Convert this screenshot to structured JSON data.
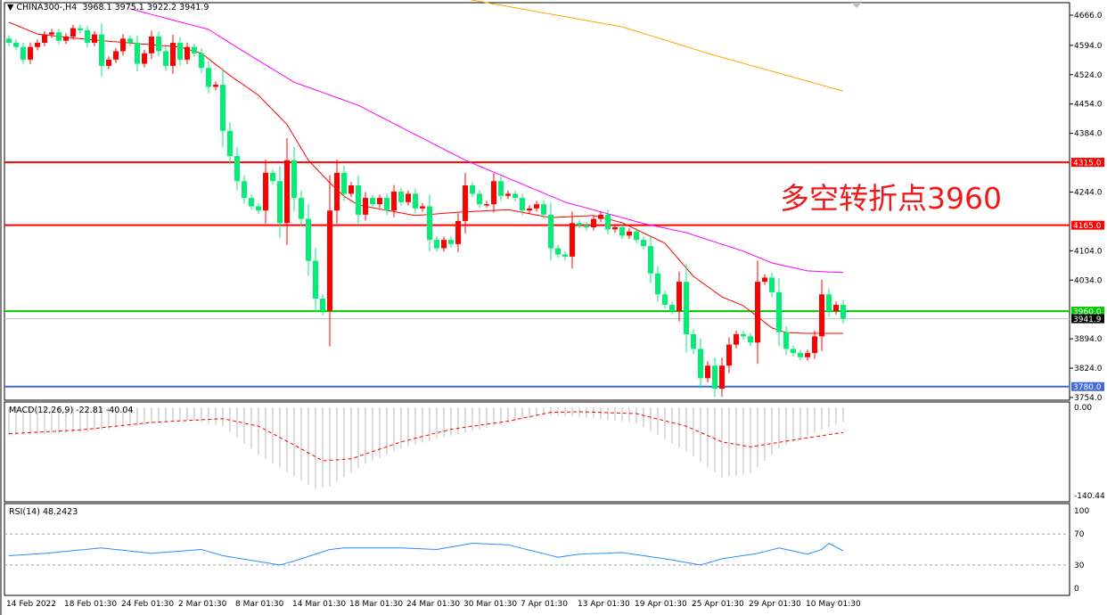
{
  "header": {
    "symbol": "CHINA300-,H4",
    "ohlc": "3968.1 3975.1 3922.2 3941.9"
  },
  "annotation": "多空转折点3960",
  "chart_data": [
    {
      "type": "candlestick",
      "title": "CHINA300-,H4",
      "y_ticks": [
        "4666.0",
        "4594.0",
        "4524.0",
        "4454.0",
        "4384.0",
        "4244.0",
        "4104.0",
        "4034.0",
        "3894.0",
        "3824.0",
        "3754.0"
      ],
      "ylim": [
        3754,
        4666
      ],
      "up_color": "#ff0000",
      "down_color": "#00ee76",
      "x_ticks": [
        "14 Feb 2022",
        "18 Feb 01:30",
        "24 Feb 01:30",
        "2 Mar 01:30",
        "8 Mar 01:30",
        "14 Mar 01:30",
        "18 Mar 01:30",
        "24 Mar 01:30",
        "30 Mar 01:30",
        "7 Apr 01:30",
        "13 Apr 01:30",
        "19 Apr 01:30",
        "25 Apr 01:30",
        "29 Apr 01:30",
        "10 May 01:30"
      ],
      "closes": [
        4600,
        4590,
        4560,
        4590,
        4600,
        4620,
        4625,
        4605,
        4615,
        4635,
        4630,
        4600,
        4620,
        4545,
        4560,
        4580,
        4610,
        4600,
        4550,
        4575,
        4615,
        4580,
        4545,
        4600,
        4560,
        4590,
        4575,
        4540,
        4495,
        4500,
        4390,
        4330,
        4270,
        4230,
        4210,
        4200,
        4290,
        4270,
        4170,
        4320,
        4230,
        4180,
        4080,
        3990,
        3960,
        4200,
        4290,
        4240,
        4260,
        4190,
        4230,
        4215,
        4230,
        4200,
        4245,
        4220,
        4240,
        4205,
        4210,
        4130,
        4110,
        4130,
        4120,
        4175,
        4260,
        4240,
        4215,
        4215,
        4270,
        4235,
        4240,
        4230,
        4200,
        4205,
        4215,
        4190,
        4110,
        4095,
        4090,
        4170,
        4165,
        4160,
        4180,
        4190,
        4155,
        4160,
        4140,
        4150,
        4130,
        4115,
        4050,
        4000,
        3975,
        3960,
        4030,
        3905,
        3870,
        3800,
        3830,
        3775,
        3830,
        3880,
        3905,
        3900,
        3885,
        4030,
        4040,
        4005,
        3910,
        3870,
        3860,
        3850,
        3860,
        3900,
        4000,
        3960,
        3975,
        3941.9
      ],
      "moving_averages": [
        {
          "color": "#ff0000",
          "points": [
            [
              0,
              4649
            ],
            [
              4,
              4621
            ],
            [
              11,
              4608
            ],
            [
              24,
              4590
            ],
            [
              27,
              4575
            ],
            [
              31,
              4522
            ],
            [
              35,
              4475
            ],
            [
              39,
              4405
            ],
            [
              42,
              4320
            ],
            [
              45,
              4266
            ],
            [
              47,
              4234
            ],
            [
              49,
              4213
            ],
            [
              57,
              4188
            ],
            [
              63,
              4196
            ],
            [
              70,
              4202
            ],
            [
              76,
              4183
            ],
            [
              82,
              4188
            ],
            [
              86,
              4171
            ],
            [
              92,
              4122
            ],
            [
              96,
              4043
            ],
            [
              100,
              3994
            ],
            [
              103,
              3973
            ],
            [
              107,
              3920
            ],
            [
              109,
              3909
            ],
            [
              112,
              3907
            ],
            [
              117,
              3907
            ]
          ]
        },
        {
          "color": "#ff00ff",
          "points": [
            [
              17,
              4681
            ],
            [
              28,
              4632
            ],
            [
              32,
              4589
            ],
            [
              40,
              4506
            ],
            [
              49,
              4451
            ],
            [
              64,
              4320
            ],
            [
              78,
              4220
            ],
            [
              89,
              4169
            ],
            [
              95,
              4147
            ],
            [
              103,
              4103
            ],
            [
              107,
              4075
            ],
            [
              112,
              4056
            ],
            [
              117,
              4052
            ]
          ]
        },
        {
          "color": "#ffa500",
          "points": [
            [
              64,
              4705
            ],
            [
              86,
              4638
            ],
            [
              99,
              4570
            ],
            [
              117,
              4485
            ]
          ]
        }
      ],
      "horizontal_lines": [
        {
          "label": "4315.0",
          "value": 4315,
          "color": "#ff0000"
        },
        {
          "label": "4165.0",
          "value": 4165,
          "color": "#ff0000"
        },
        {
          "label": "3960.0",
          "value": 3960,
          "color": "#00cc00"
        },
        {
          "label": "3780.0",
          "value": 3780,
          "color": "#4169e1"
        },
        {
          "label": "3941.9",
          "value": 3941.9,
          "color": "#c0c0c0",
          "label_bg": "#000000"
        }
      ]
    },
    {
      "type": "bar",
      "title": "MACD(12,26,9) -22.81 -40.04",
      "y_ticks": [
        "0.00",
        "-140.44"
      ],
      "ylim": [
        -140.44,
        0
      ],
      "histogram": [
        [
          0,
          -45
        ],
        [
          10,
          -40
        ],
        [
          25,
          -20
        ],
        [
          30,
          -30
        ],
        [
          35,
          -75
        ],
        [
          40,
          -110
        ],
        [
          43,
          -130
        ],
        [
          45,
          -125
        ],
        [
          50,
          -90
        ],
        [
          55,
          -65
        ],
        [
          60,
          -50
        ],
        [
          68,
          -30
        ],
        [
          75,
          -12
        ],
        [
          80,
          -15
        ],
        [
          88,
          -25
        ],
        [
          95,
          -70
        ],
        [
          100,
          -112
        ],
        [
          104,
          -105
        ],
        [
          108,
          -65
        ],
        [
          113,
          -40
        ],
        [
          117,
          -22.81
        ]
      ],
      "signal": [
        [
          0,
          -42
        ],
        [
          10,
          -36
        ],
        [
          20,
          -24
        ],
        [
          30,
          -18
        ],
        [
          35,
          -30
        ],
        [
          40,
          -60
        ],
        [
          44,
          -85
        ],
        [
          48,
          -82
        ],
        [
          55,
          -55
        ],
        [
          62,
          -35
        ],
        [
          70,
          -22
        ],
        [
          76,
          -8
        ],
        [
          80,
          -7
        ],
        [
          88,
          -10
        ],
        [
          95,
          -30
        ],
        [
          100,
          -55
        ],
        [
          104,
          -63
        ],
        [
          110,
          -52
        ],
        [
          117,
          -40.04
        ]
      ]
    },
    {
      "type": "line",
      "title": "RSI(14) 48.2423",
      "y_ticks": [
        "100",
        "70",
        "30",
        "0"
      ],
      "ylim": [
        0,
        100
      ],
      "levels": [
        70,
        30
      ],
      "color": "#1e90ff",
      "values": [
        [
          0,
          42
        ],
        [
          5,
          45
        ],
        [
          13,
          52
        ],
        [
          20,
          45
        ],
        [
          27,
          50
        ],
        [
          30,
          42
        ],
        [
          36,
          33
        ],
        [
          38,
          30
        ],
        [
          40,
          35
        ],
        [
          45,
          50
        ],
        [
          47,
          52
        ],
        [
          55,
          52
        ],
        [
          60,
          50
        ],
        [
          65,
          58
        ],
        [
          70,
          56
        ],
        [
          77,
          40
        ],
        [
          80,
          44
        ],
        [
          86,
          46
        ],
        [
          92,
          38
        ],
        [
          97,
          30
        ],
        [
          100,
          38
        ],
        [
          105,
          45
        ],
        [
          108,
          52
        ],
        [
          112,
          44
        ],
        [
          114,
          50
        ],
        [
          115,
          58
        ],
        [
          117,
          48.24
        ]
      ]
    }
  ]
}
